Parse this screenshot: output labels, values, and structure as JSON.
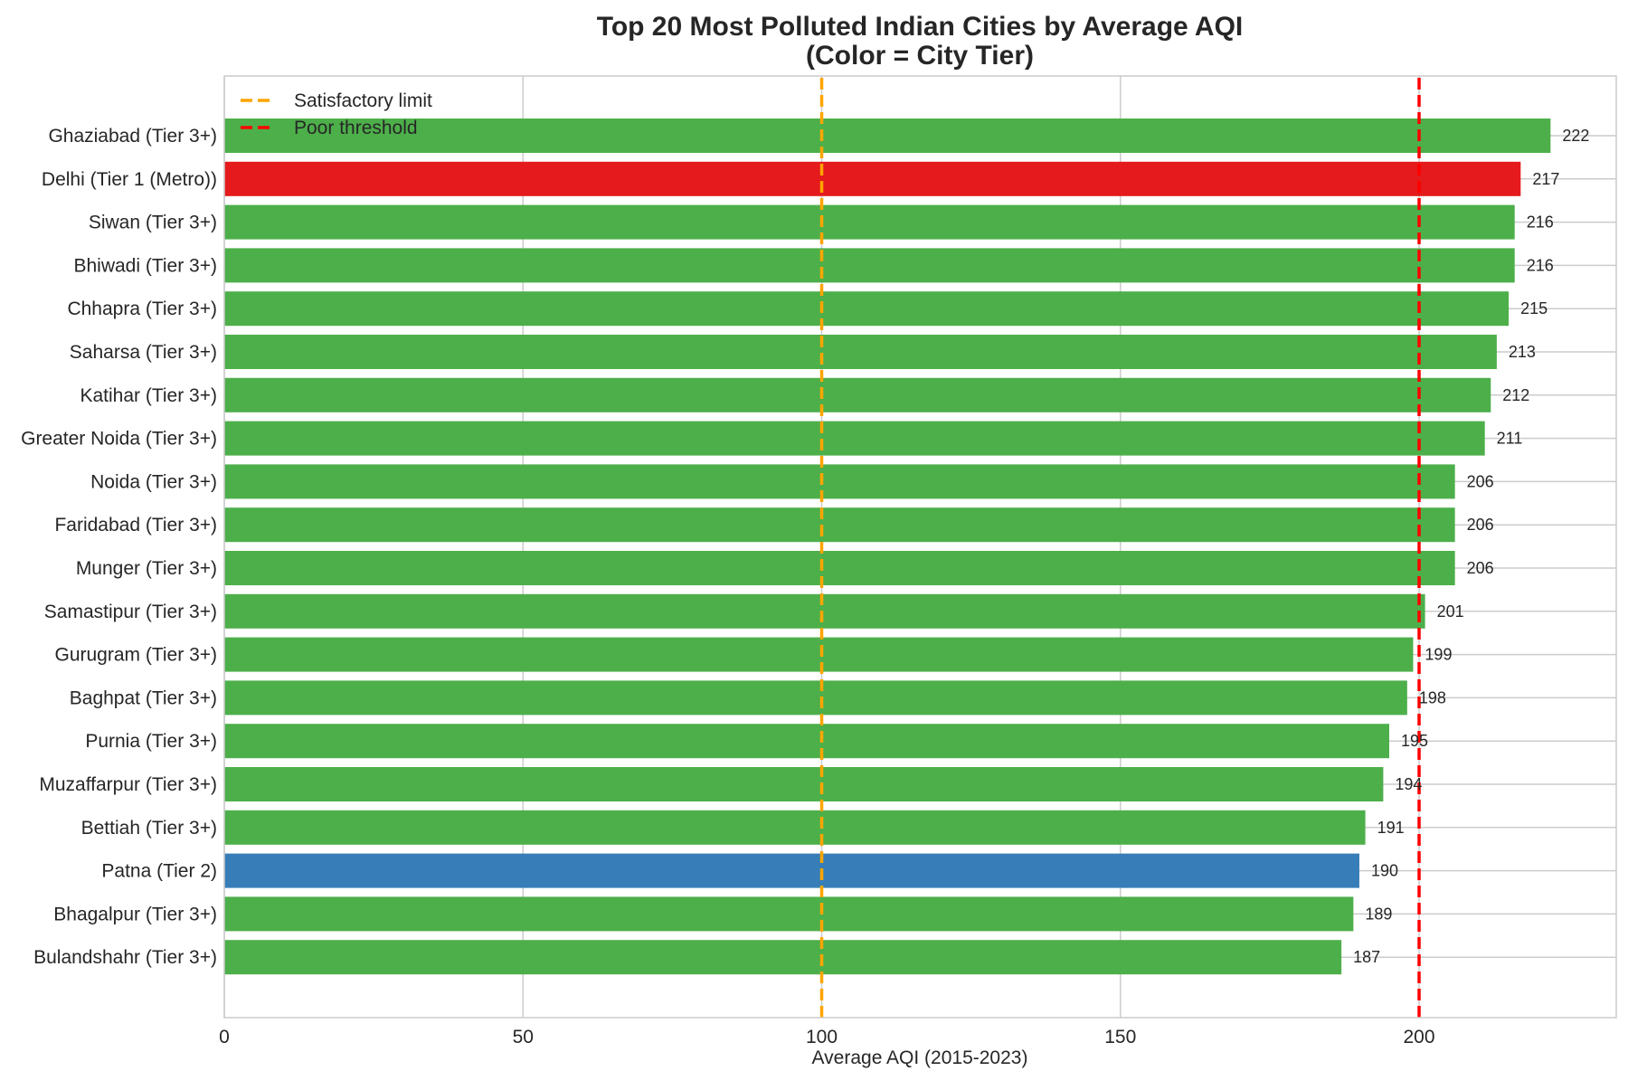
{
  "chart_data": {
    "type": "bar",
    "orientation": "horizontal",
    "title": "Top 20 Most Polluted Indian Cities by Average AQI",
    "subtitle": "(Color = City Tier)",
    "xlabel": "Average AQI (2015-2023)",
    "ylabel": "",
    "xlim": [
      0,
      233
    ],
    "xticks": [
      0,
      50,
      100,
      150,
      200
    ],
    "grid": true,
    "legend_position": "top-left",
    "categories": [
      "Ghaziabad (Tier 3+)",
      "Delhi (Tier 1 (Metro))",
      "Siwan (Tier 3+)",
      "Bhiwadi (Tier 3+)",
      "Chhapra (Tier 3+)",
      "Saharsa (Tier 3+)",
      "Katihar (Tier 3+)",
      "Greater Noida (Tier 3+)",
      "Noida (Tier 3+)",
      "Faridabad (Tier 3+)",
      "Munger (Tier 3+)",
      "Samastipur (Tier 3+)",
      "Gurugram (Tier 3+)",
      "Baghpat (Tier 3+)",
      "Purnia (Tier 3+)",
      "Muzaffarpur (Tier 3+)",
      "Bettiah (Tier 3+)",
      "Patna (Tier 2)",
      "Bhagalpur (Tier 3+)",
      "Bulandshahr (Tier 3+)"
    ],
    "values": [
      222,
      217,
      216,
      216,
      215,
      213,
      212,
      211,
      206,
      206,
      206,
      201,
      199,
      198,
      195,
      194,
      191,
      190,
      189,
      187
    ],
    "value_labels": [
      "222",
      "217",
      "216",
      "216",
      "215",
      "213",
      "212",
      "211",
      "206",
      "206",
      "206",
      "201",
      "199",
      "198",
      "195",
      "194",
      "191",
      "190",
      "189",
      "187"
    ],
    "tiers": [
      "Tier 3+",
      "Tier 1 (Metro)",
      "Tier 3+",
      "Tier 3+",
      "Tier 3+",
      "Tier 3+",
      "Tier 3+",
      "Tier 3+",
      "Tier 3+",
      "Tier 3+",
      "Tier 3+",
      "Tier 3+",
      "Tier 3+",
      "Tier 3+",
      "Tier 3+",
      "Tier 3+",
      "Tier 3+",
      "Tier 2",
      "Tier 3+",
      "Tier 3+"
    ],
    "tier_colors": {
      "Tier 1 (Metro)": "#e41a1c",
      "Tier 2": "#377eb8",
      "Tier 3+": "#4daf4a"
    },
    "reference_lines": [
      {
        "name": "Satisfactory limit",
        "value": 100,
        "color": "#ffa500",
        "style": "dashed"
      },
      {
        "name": "Poor threshold",
        "value": 200,
        "color": "#ff0000",
        "style": "dashed"
      }
    ]
  }
}
